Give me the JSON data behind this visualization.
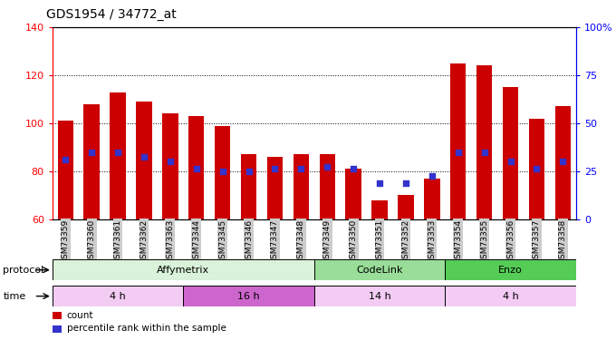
{
  "title": "GDS1954 / 34772_at",
  "samples": [
    "GSM73359",
    "GSM73360",
    "GSM73361",
    "GSM73362",
    "GSM73363",
    "GSM73344",
    "GSM73345",
    "GSM73346",
    "GSM73347",
    "GSM73348",
    "GSM73349",
    "GSM73350",
    "GSM73351",
    "GSM73352",
    "GSM73353",
    "GSM73354",
    "GSM73355",
    "GSM73356",
    "GSM73357",
    "GSM73358"
  ],
  "bar_heights": [
    101,
    108,
    113,
    109,
    104,
    103,
    99,
    87,
    86,
    87,
    87,
    81,
    68,
    70,
    77,
    125,
    124,
    115,
    102,
    107
  ],
  "blue_markers": [
    85,
    88,
    88,
    86,
    84,
    81,
    80,
    80,
    81,
    81,
    82,
    81,
    75,
    75,
    78,
    88,
    88,
    84,
    81,
    84
  ],
  "ylim_left": [
    60,
    140
  ],
  "ylim_right": [
    0,
    100
  ],
  "yticks_left": [
    60,
    80,
    100,
    120,
    140
  ],
  "yticks_right": [
    0,
    25,
    50,
    75,
    100
  ],
  "ytick_labels_right": [
    "0",
    "25",
    "50",
    "75",
    "100%"
  ],
  "bar_color": "#cc0000",
  "marker_color": "#3333cc",
  "protocol_groups": [
    {
      "label": "Affymetrix",
      "start": 0,
      "end": 10,
      "color": "#d9f2d9"
    },
    {
      "label": "CodeLink",
      "start": 10,
      "end": 15,
      "color": "#99dd99"
    },
    {
      "label": "Enzo",
      "start": 15,
      "end": 20,
      "color": "#55cc55"
    }
  ],
  "time_groups": [
    {
      "label": "4 h",
      "start": 0,
      "end": 5,
      "color": "#f2ccf2"
    },
    {
      "label": "16 h",
      "start": 5,
      "end": 10,
      "color": "#cc66cc"
    },
    {
      "label": "14 h",
      "start": 10,
      "end": 15,
      "color": "#f2ccf2"
    },
    {
      "label": "4 h",
      "start": 15,
      "end": 20,
      "color": "#f2ccf2"
    }
  ],
  "legend_items": [
    {
      "label": "count",
      "color": "#cc0000"
    },
    {
      "label": "percentile rank within the sample",
      "color": "#3333cc"
    }
  ],
  "background_color": "#ffffff",
  "xtick_bg_color": "#cccccc"
}
